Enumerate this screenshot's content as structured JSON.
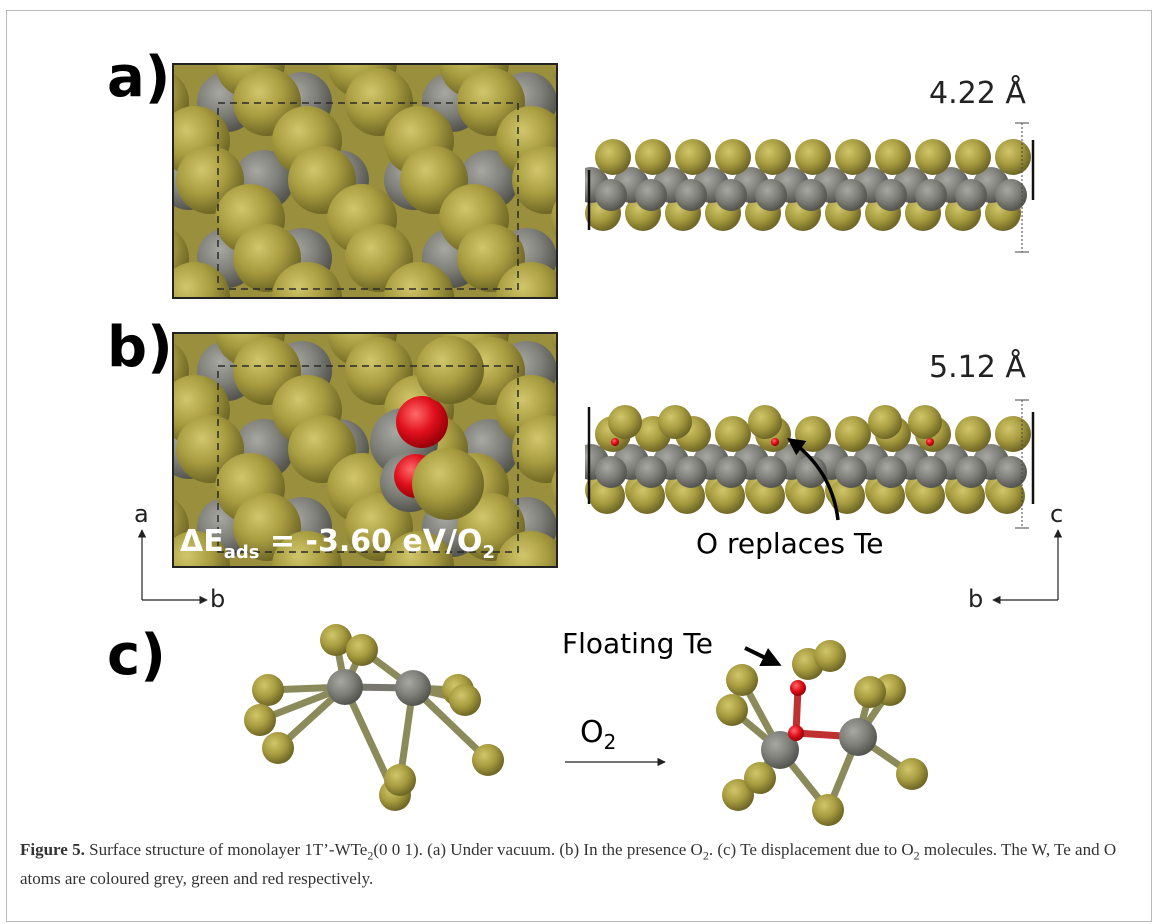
{
  "panels": {
    "a": {
      "label": "a)",
      "height_label": "4.22 Å"
    },
    "b": {
      "label": "b)",
      "height_label": "5.12 Å",
      "energy": {
        "prefix": "ΔE",
        "subscript": "ads",
        "value": " = -3.60 eV/O",
        "sub2": "2"
      },
      "annotation": "O replaces Te"
    },
    "c": {
      "label": "c)",
      "annotation": "Floating Te",
      "arrow_label": "O",
      "arrow_sub": "2"
    }
  },
  "axes": {
    "left": {
      "up": "a",
      "right": "b"
    },
    "right": {
      "up": "c",
      "left": "b"
    }
  },
  "colors": {
    "tellurium": "#9c9038",
    "tungsten": "#7c7c76",
    "oxygen": "#e0101c"
  },
  "caption": {
    "lead": "Figure 5.",
    "p1": "  Surface structure of monolayer 1T’-WTe",
    "s1": "2",
    "p2": "(0 0 1). (a) Under vacuum. (b) In the presence O",
    "s2": "2",
    "p3": ". (c) Te displacement due to O",
    "s3": "2",
    "p4": " molecules. The W, Te and O atoms are coloured grey, green and red respectively."
  }
}
